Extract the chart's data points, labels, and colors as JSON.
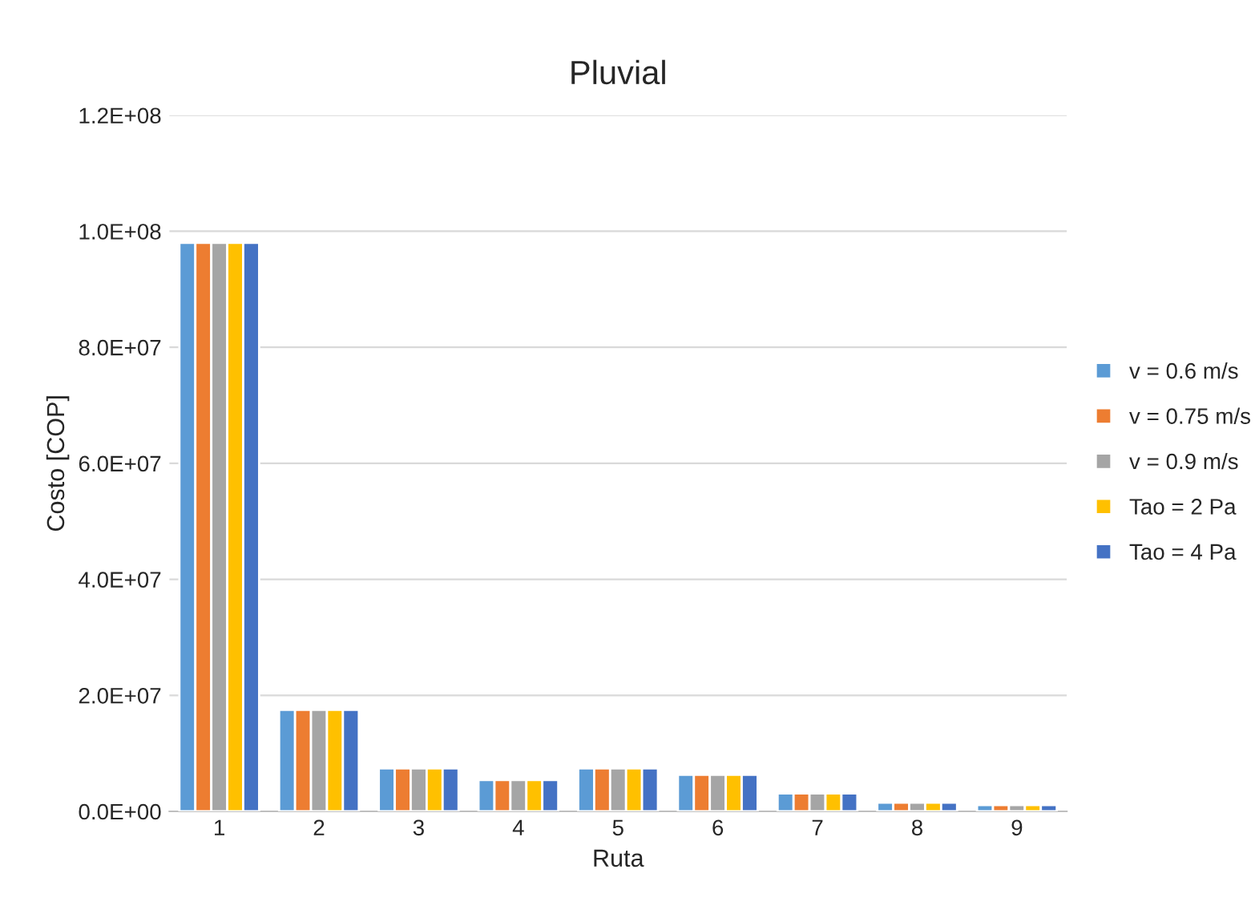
{
  "chart_data": {
    "type": "bar",
    "title": "Pluvial",
    "xlabel": "Ruta",
    "ylabel": "Costo [COP]",
    "categories": [
      "1",
      "2",
      "3",
      "4",
      "5",
      "6",
      "7",
      "8",
      "9"
    ],
    "series": [
      {
        "name": "v = 0.6 m/s",
        "color": "#5b9bd5",
        "values": [
          98000000,
          17500000,
          7400000,
          5400000,
          7400000,
          6300000,
          3100000,
          1500000,
          1100000
        ]
      },
      {
        "name": "v = 0.75 m/s",
        "color": "#ed7d31",
        "values": [
          98000000,
          17500000,
          7400000,
          5400000,
          7400000,
          6300000,
          3100000,
          1500000,
          1100000
        ]
      },
      {
        "name": "v = 0.9 m/s",
        "color": "#a5a5a5",
        "values": [
          98000000,
          17500000,
          7400000,
          5400000,
          7400000,
          6300000,
          3100000,
          1500000,
          1100000
        ]
      },
      {
        "name": "Tao = 2 Pa",
        "color": "#ffc000",
        "values": [
          98000000,
          17500000,
          7400000,
          5400000,
          7400000,
          6300000,
          3100000,
          1500000,
          1100000
        ]
      },
      {
        "name": "Tao = 4 Pa",
        "color": "#4472c4",
        "values": [
          98000000,
          17500000,
          7400000,
          5400000,
          7400000,
          6300000,
          3100000,
          1500000,
          1100000
        ]
      }
    ],
    "ylim": [
      0,
      120000000
    ],
    "yticks": [
      {
        "value": 0,
        "label": "0.0E+00"
      },
      {
        "value": 20000000,
        "label": "2.0E+07"
      },
      {
        "value": 40000000,
        "label": "4.0E+07"
      },
      {
        "value": 60000000,
        "label": "6.0E+07"
      },
      {
        "value": 80000000,
        "label": "8.0E+07"
      },
      {
        "value": 100000000,
        "label": "1.0E+08"
      },
      {
        "value": 120000000,
        "label": "1.2E+08"
      }
    ],
    "grid": "y",
    "legend": "right"
  }
}
